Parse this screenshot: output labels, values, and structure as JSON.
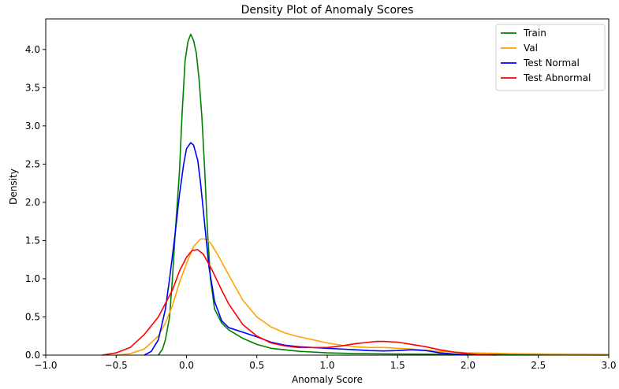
{
  "chart_data": {
    "type": "line",
    "title": "Density Plot of Anomaly Scores",
    "xlabel": "Anomaly Score",
    "ylabel": "Density",
    "xlim": [
      -1.0,
      3.0
    ],
    "ylim": [
      0,
      4.4
    ],
    "xticks": [
      "−1.0",
      "−0.5",
      "0.0",
      "0.5",
      "1.0",
      "1.5",
      "2.0",
      "2.5",
      "3.0"
    ],
    "xtick_values": [
      -1.0,
      -0.5,
      0.0,
      0.5,
      1.0,
      1.5,
      2.0,
      2.5,
      3.0
    ],
    "yticks": [
      "0.0",
      "0.5",
      "1.0",
      "1.5",
      "2.0",
      "2.5",
      "3.0",
      "3.5",
      "4.0"
    ],
    "ytick_values": [
      0.0,
      0.5,
      1.0,
      1.5,
      2.0,
      2.5,
      3.0,
      3.5,
      4.0
    ],
    "grid": false,
    "legend_position": "top-right",
    "series": [
      {
        "name": "Train",
        "color": "#008000",
        "points": [
          [
            -0.2,
            0.0
          ],
          [
            -0.17,
            0.08
          ],
          [
            -0.15,
            0.2
          ],
          [
            -0.12,
            0.5
          ],
          [
            -0.1,
            1.0
          ],
          [
            -0.08,
            1.6
          ],
          [
            -0.05,
            2.4
          ],
          [
            -0.03,
            3.2
          ],
          [
            -0.01,
            3.85
          ],
          [
            0.01,
            4.1
          ],
          [
            0.03,
            4.2
          ],
          [
            0.05,
            4.12
          ],
          [
            0.07,
            3.95
          ],
          [
            0.09,
            3.6
          ],
          [
            0.11,
            3.1
          ],
          [
            0.13,
            2.4
          ],
          [
            0.15,
            1.6
          ],
          [
            0.17,
            1.0
          ],
          [
            0.2,
            0.6
          ],
          [
            0.25,
            0.42
          ],
          [
            0.3,
            0.33
          ],
          [
            0.4,
            0.22
          ],
          [
            0.5,
            0.14
          ],
          [
            0.6,
            0.09
          ],
          [
            0.8,
            0.05
          ],
          [
            1.0,
            0.03
          ],
          [
            1.2,
            0.02
          ],
          [
            1.5,
            0.015
          ],
          [
            2.0,
            0.01
          ],
          [
            2.5,
            0.005
          ],
          [
            3.0,
            0.002
          ]
        ]
      },
      {
        "name": "Val",
        "color": "#ffa500",
        "points": [
          [
            -0.5,
            0.0
          ],
          [
            -0.4,
            0.02
          ],
          [
            -0.3,
            0.08
          ],
          [
            -0.2,
            0.25
          ],
          [
            -0.15,
            0.42
          ],
          [
            -0.1,
            0.65
          ],
          [
            -0.05,
            0.95
          ],
          [
            0.0,
            1.2
          ],
          [
            0.05,
            1.42
          ],
          [
            0.1,
            1.52
          ],
          [
            0.13,
            1.52
          ],
          [
            0.17,
            1.47
          ],
          [
            0.22,
            1.32
          ],
          [
            0.3,
            1.05
          ],
          [
            0.4,
            0.72
          ],
          [
            0.5,
            0.5
          ],
          [
            0.6,
            0.37
          ],
          [
            0.7,
            0.29
          ],
          [
            0.8,
            0.24
          ],
          [
            0.9,
            0.2
          ],
          [
            1.0,
            0.16
          ],
          [
            1.1,
            0.13
          ],
          [
            1.2,
            0.11
          ],
          [
            1.3,
            0.1
          ],
          [
            1.4,
            0.1
          ],
          [
            1.5,
            0.09
          ],
          [
            1.6,
            0.08
          ],
          [
            1.8,
            0.05
          ],
          [
            2.0,
            0.03
          ],
          [
            2.3,
            0.02
          ],
          [
            2.6,
            0.015
          ],
          [
            3.0,
            0.01
          ]
        ]
      },
      {
        "name": "Test Normal",
        "color": "#0000ff",
        "points": [
          [
            -0.3,
            0.0
          ],
          [
            -0.25,
            0.05
          ],
          [
            -0.2,
            0.2
          ],
          [
            -0.15,
            0.6
          ],
          [
            -0.12,
            1.0
          ],
          [
            -0.08,
            1.6
          ],
          [
            -0.05,
            2.1
          ],
          [
            -0.02,
            2.5
          ],
          [
            0.0,
            2.7
          ],
          [
            0.03,
            2.78
          ],
          [
            0.05,
            2.75
          ],
          [
            0.08,
            2.55
          ],
          [
            0.1,
            2.25
          ],
          [
            0.13,
            1.7
          ],
          [
            0.16,
            1.15
          ],
          [
            0.2,
            0.7
          ],
          [
            0.25,
            0.45
          ],
          [
            0.3,
            0.36
          ],
          [
            0.4,
            0.3
          ],
          [
            0.5,
            0.24
          ],
          [
            0.6,
            0.17
          ],
          [
            0.7,
            0.13
          ],
          [
            0.8,
            0.11
          ],
          [
            0.9,
            0.1
          ],
          [
            1.0,
            0.09
          ],
          [
            1.1,
            0.08
          ],
          [
            1.2,
            0.07
          ],
          [
            1.3,
            0.06
          ],
          [
            1.4,
            0.055
          ],
          [
            1.5,
            0.06
          ],
          [
            1.6,
            0.07
          ],
          [
            1.7,
            0.06
          ],
          [
            1.8,
            0.03
          ],
          [
            1.9,
            0.015
          ],
          [
            2.0,
            0.0
          ]
        ]
      },
      {
        "name": "Test Abnormal",
        "color": "#ff0000",
        "points": [
          [
            -0.6,
            0.0
          ],
          [
            -0.5,
            0.03
          ],
          [
            -0.4,
            0.1
          ],
          [
            -0.3,
            0.27
          ],
          [
            -0.2,
            0.5
          ],
          [
            -0.1,
            0.85
          ],
          [
            -0.05,
            1.1
          ],
          [
            0.0,
            1.28
          ],
          [
            0.04,
            1.37
          ],
          [
            0.08,
            1.38
          ],
          [
            0.12,
            1.32
          ],
          [
            0.18,
            1.12
          ],
          [
            0.25,
            0.85
          ],
          [
            0.3,
            0.67
          ],
          [
            0.4,
            0.4
          ],
          [
            0.5,
            0.25
          ],
          [
            0.6,
            0.16
          ],
          [
            0.7,
            0.12
          ],
          [
            0.8,
            0.1
          ],
          [
            0.9,
            0.1
          ],
          [
            1.0,
            0.1
          ],
          [
            1.1,
            0.12
          ],
          [
            1.2,
            0.15
          ],
          [
            1.3,
            0.17
          ],
          [
            1.35,
            0.18
          ],
          [
            1.4,
            0.18
          ],
          [
            1.5,
            0.17
          ],
          [
            1.6,
            0.14
          ],
          [
            1.7,
            0.11
          ],
          [
            1.8,
            0.07
          ],
          [
            1.9,
            0.04
          ],
          [
            2.0,
            0.02
          ],
          [
            2.1,
            0.005
          ],
          [
            2.2,
            0.0
          ]
        ]
      }
    ]
  }
}
